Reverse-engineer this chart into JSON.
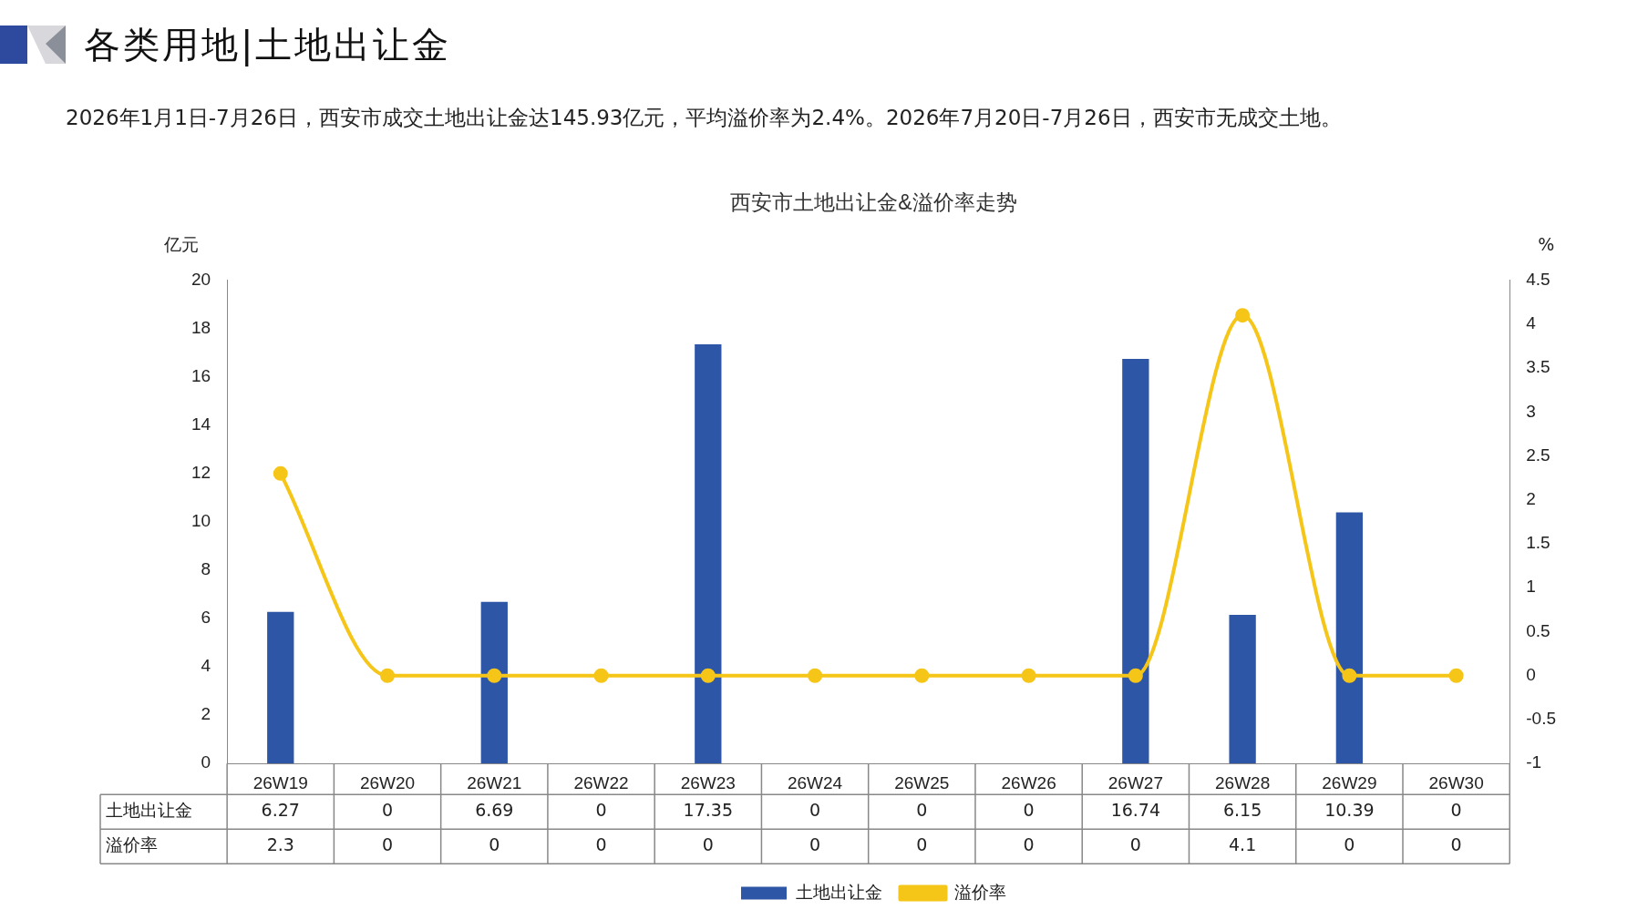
{
  "chart_data": {
    "type": "bar",
    "title": "西安市土地出让金&溢价率走势",
    "ylabel": "亿元",
    "y2label": "%",
    "annotations": [
      "各类用地|土地出让金",
      "2026年1月1日-7月26日，西安市成交土地出让金达145.93亿元，平均溢价率为2.4%。2026年7月20日-7月26日，西安市无成交土地。"
    ],
    "categories": [
      "26W19",
      "26W20",
      "26W21",
      "26W22",
      "26W23",
      "26W24",
      "26W25",
      "26W26",
      "26W27",
      "26W28",
      "26W29",
      "26W30"
    ],
    "series": [
      {
        "name": "土地出让金",
        "color": "#2e56a6",
        "values": [
          6.27,
          0,
          6.69,
          0,
          17.35,
          0,
          0,
          0,
          16.74,
          6.15,
          10.39,
          0
        ]
      },
      {
        "name": "溢价率",
        "type": "line",
        "axis": "y2",
        "color": "#f5c518",
        "marker": "circle",
        "values": [
          2.3,
          0,
          0,
          0,
          0,
          0,
          0,
          0,
          0,
          4.1,
          0,
          0
        ]
      }
    ],
    "ylim": [
      0,
      20
    ],
    "yticks": [
      0,
      2,
      4,
      6,
      8,
      10,
      12,
      14,
      16,
      18,
      20
    ],
    "y2lim": [
      -1,
      4.5
    ],
    "y2ticks": [
      -1,
      -0.5,
      0,
      0.5,
      1,
      1.5,
      2,
      2.5,
      3,
      3.5,
      4,
      4.5
    ],
    "data_labels": true,
    "legend": "bottom",
    "grid": false
  }
}
